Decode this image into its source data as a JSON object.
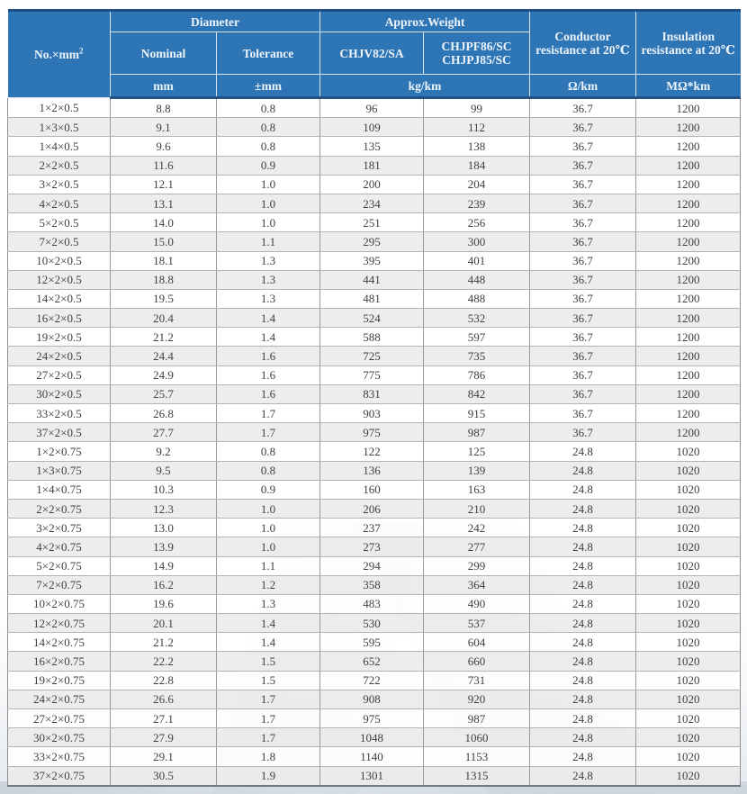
{
  "table": {
    "header": {
      "no_label": "No.×mm",
      "no_sup": "2",
      "diameter": "Diameter",
      "approx_weight": "Approx.Weight",
      "nominal": "Nominal",
      "tolerance": "Tolerance",
      "chjv": "CHJV82/SA",
      "chjpf_line1": "CHJPF86/SC",
      "chjpf_line2": "CHJPJ85/SC",
      "conductor_resistance": "Conductor resistance at 20℃",
      "insulation_resistance": "Insulation resistance at 20℃",
      "units": {
        "nominal": "mm",
        "tolerance": "±mm",
        "weight": "kg/km",
        "conductor": "Ω/km",
        "insulation": "MΩ*km"
      }
    },
    "rows": [
      [
        "1×2×0.5",
        "8.8",
        "0.8",
        "96",
        "99",
        "36.7",
        "1200"
      ],
      [
        "1×3×0.5",
        "9.1",
        "0.8",
        "109",
        "112",
        "36.7",
        "1200"
      ],
      [
        "1×4×0.5",
        "9.6",
        "0.8",
        "135",
        "138",
        "36.7",
        "1200"
      ],
      [
        "2×2×0.5",
        "11.6",
        "0.9",
        "181",
        "184",
        "36.7",
        "1200"
      ],
      [
        "3×2×0.5",
        "12.1",
        "1.0",
        "200",
        "204",
        "36.7",
        "1200"
      ],
      [
        "4×2×0.5",
        "13.1",
        "1.0",
        "234",
        "239",
        "36.7",
        "1200"
      ],
      [
        "5×2×0.5",
        "14.0",
        "1.0",
        "251",
        "256",
        "36.7",
        "1200"
      ],
      [
        "7×2×0.5",
        "15.0",
        "1.1",
        "295",
        "300",
        "36.7",
        "1200"
      ],
      [
        "10×2×0.5",
        "18.1",
        "1.3",
        "395",
        "401",
        "36.7",
        "1200"
      ],
      [
        "12×2×0.5",
        "18.8",
        "1.3",
        "441",
        "448",
        "36.7",
        "1200"
      ],
      [
        "14×2×0.5",
        "19.5",
        "1.3",
        "481",
        "488",
        "36.7",
        "1200"
      ],
      [
        "16×2×0.5",
        "20.4",
        "1.4",
        "524",
        "532",
        "36.7",
        "1200"
      ],
      [
        "19×2×0.5",
        "21.2",
        "1.4",
        "588",
        "597",
        "36.7",
        "1200"
      ],
      [
        "24×2×0.5",
        "24.4",
        "1.6",
        "725",
        "735",
        "36.7",
        "1200"
      ],
      [
        "27×2×0.5",
        "24.9",
        "1.6",
        "775",
        "786",
        "36.7",
        "1200"
      ],
      [
        "30×2×0.5",
        "25.7",
        "1.6",
        "831",
        "842",
        "36.7",
        "1200"
      ],
      [
        "33×2×0.5",
        "26.8",
        "1.7",
        "903",
        "915",
        "36.7",
        "1200"
      ],
      [
        "37×2×0.5",
        "27.7",
        "1.7",
        "975",
        "987",
        "36.7",
        "1200"
      ],
      [
        "1×2×0.75",
        "9.2",
        "0.8",
        "122",
        "125",
        "24.8",
        "1020"
      ],
      [
        "1×3×0.75",
        "9.5",
        "0.8",
        "136",
        "139",
        "24.8",
        "1020"
      ],
      [
        "1×4×0.75",
        "10.3",
        "0.9",
        "160",
        "163",
        "24.8",
        "1020"
      ],
      [
        "2×2×0.75",
        "12.3",
        "1.0",
        "206",
        "210",
        "24.8",
        "1020"
      ],
      [
        "3×2×0.75",
        "13.0",
        "1.0",
        "237",
        "242",
        "24.8",
        "1020"
      ],
      [
        "4×2×0.75",
        "13.9",
        "1.0",
        "273",
        "277",
        "24.8",
        "1020"
      ],
      [
        "5×2×0.75",
        "14.9",
        "1.1",
        "294",
        "299",
        "24.8",
        "1020"
      ],
      [
        "7×2×0.75",
        "16.2",
        "1.2",
        "358",
        "364",
        "24.8",
        "1020"
      ],
      [
        "10×2×0.75",
        "19.6",
        "1.3",
        "483",
        "490",
        "24.8",
        "1020"
      ],
      [
        "12×2×0.75",
        "20.1",
        "1.4",
        "530",
        "537",
        "24.8",
        "1020"
      ],
      [
        "14×2×0.75",
        "21.2",
        "1.4",
        "595",
        "604",
        "24.8",
        "1020"
      ],
      [
        "16×2×0.75",
        "22.2",
        "1.5",
        "652",
        "660",
        "24.8",
        "1020"
      ],
      [
        "19×2×0.75",
        "22.8",
        "1.5",
        "722",
        "731",
        "24.8",
        "1020"
      ],
      [
        "24×2×0.75",
        "26.6",
        "1.7",
        "908",
        "920",
        "24.8",
        "1020"
      ],
      [
        "27×2×0.75",
        "27.1",
        "1.7",
        "975",
        "987",
        "24.8",
        "1020"
      ],
      [
        "30×2×0.75",
        "27.9",
        "1.7",
        "1048",
        "1060",
        "24.8",
        "1020"
      ],
      [
        "33×2×0.75",
        "29.1",
        "1.8",
        "1140",
        "1153",
        "24.8",
        "1020"
      ],
      [
        "37×2×0.75",
        "30.5",
        "1.9",
        "1301",
        "1315",
        "24.8",
        "1020"
      ]
    ]
  },
  "colors": {
    "header_bg": "#2e75b6",
    "header_text": "#eef4fb",
    "header_top_border": "#1d4f82",
    "header_bottom_border": "#235081",
    "body_text": "#404040",
    "stripe": "#eaebec",
    "grid": "#9a9a9a"
  }
}
